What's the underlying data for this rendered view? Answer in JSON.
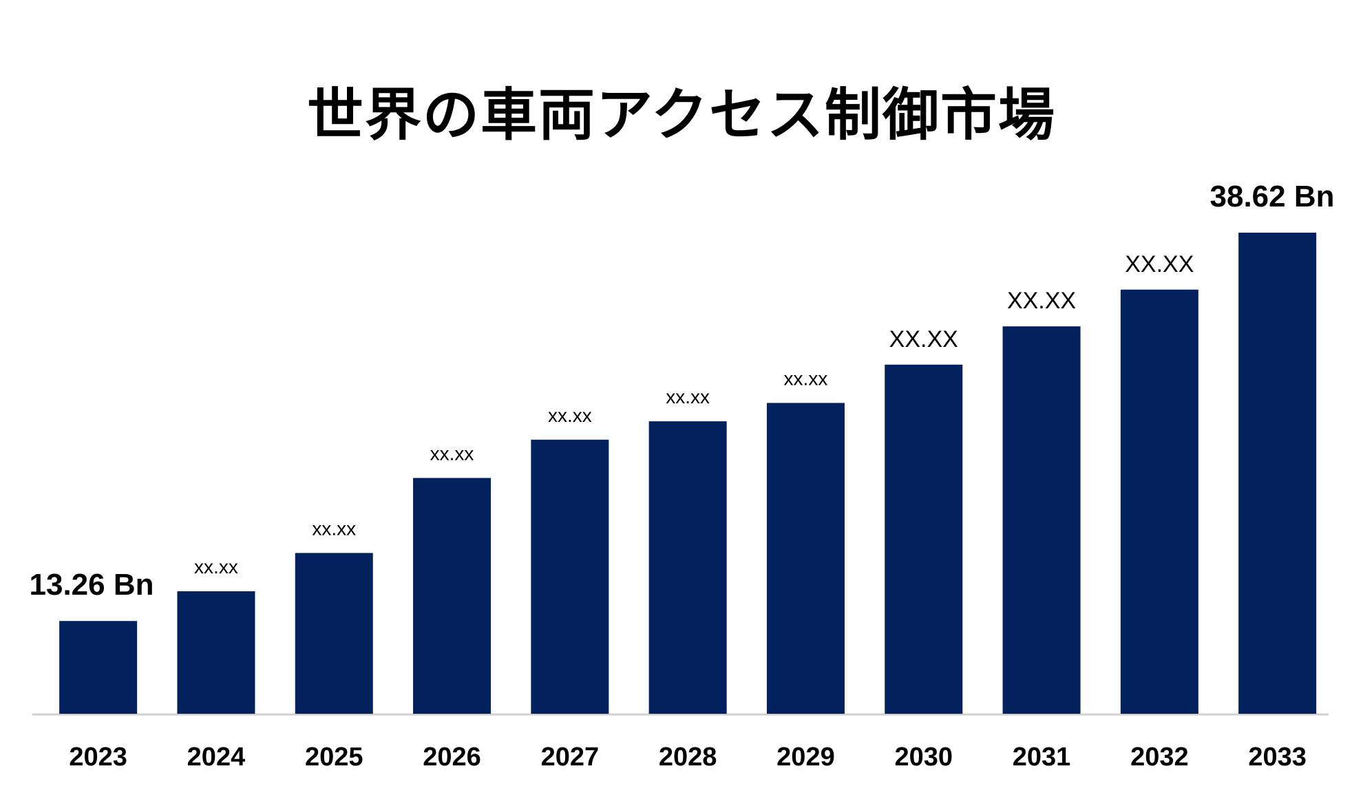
{
  "chart_data": {
    "type": "bar",
    "title": "世界の車両アクセス制御市場",
    "xlabel": "",
    "ylabel": "",
    "categories": [
      "2023",
      "2024",
      "2025",
      "2026",
      "2027",
      "2028",
      "2029",
      "2030",
      "2031",
      "2032",
      "2033"
    ],
    "values": [
      13.26,
      15.2,
      17.7,
      22.6,
      25.1,
      26.3,
      27.5,
      30.0,
      32.5,
      34.9,
      38.62
    ],
    "data_labels": [
      "13.26 Bn",
      "XX.XX",
      "XX.XX",
      "XX.XX",
      "XX.XX",
      "XX.XX",
      "XX.XX",
      "XX.XX",
      "XX.XX",
      "XX.XX",
      "38.62 Bn"
    ],
    "ylim": [
      7.2,
      38.62
    ],
    "grid": false,
    "legend": "none",
    "bar_color": "#03215D",
    "axis_color": "#D0D0D0",
    "text_color": "#000000"
  }
}
